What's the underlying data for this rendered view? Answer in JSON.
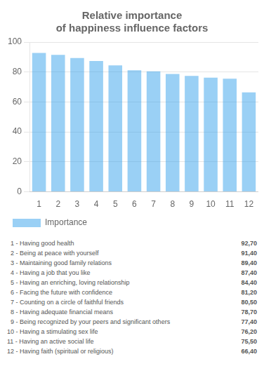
{
  "chart_data": {
    "type": "bar",
    "title": [
      "Relative importance",
      "of happiness influence factors"
    ],
    "categories": [
      "1",
      "2",
      "3",
      "4",
      "5",
      "6",
      "7",
      "8",
      "9",
      "10",
      "11",
      "12"
    ],
    "series": [
      {
        "name": "Importance",
        "values": [
          92.7,
          91.4,
          89.4,
          87.4,
          84.4,
          81.2,
          80.5,
          78.7,
          77.4,
          76.2,
          75.5,
          66.4
        ]
      }
    ],
    "ylim": [
      0,
      100
    ],
    "yticks": [
      0,
      20,
      40,
      60,
      80,
      100
    ],
    "grid": true,
    "legend": "bottom",
    "annotations": [
      [
        "  1 - Having good health",
        "92,70"
      ],
      [
        "  2 - Being at peace with yourself",
        "91,40"
      ],
      [
        "  3 - Maintaining good family relations",
        "89,40"
      ],
      [
        "  4 - Having a job that you like",
        "87,40"
      ],
      [
        "  5 - Having an enriching, loving relationship",
        "84,40"
      ],
      [
        "  6 - Facing the future with confidence",
        "81,20"
      ],
      [
        "  7 - Counting on a circle of faithful friends",
        "80,50"
      ],
      [
        "  8 - Having adequate financial means",
        "78,70"
      ],
      [
        "  9 - Being recognized by your peers and significant others",
        "77,40"
      ],
      [
        "10 - Having a stimulating sex life",
        "76,20"
      ],
      [
        "11 - Having an active social life",
        "75,50"
      ],
      [
        "12 - Having faith (spiritual or religious)",
        "66,40"
      ]
    ]
  }
}
